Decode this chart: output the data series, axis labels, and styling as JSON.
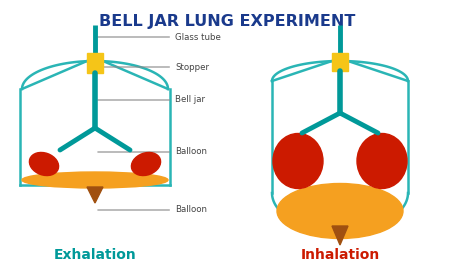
{
  "title": "BELL JAR LUNG EXPERIMENT",
  "title_color": "#1a3a8c",
  "title_fontsize": 11.5,
  "bg_color": "#ffffff",
  "teal": "#2ab5b5",
  "teal_dark": "#009999",
  "yellow": "#f5c518",
  "orange": "#f5a020",
  "red": "#cc1a00",
  "brown": "#a05010",
  "gray_line": "#aaaaaa",
  "label_fontsize": 6.2,
  "exhalation_label": "Exhalation",
  "inhalation_label": "Inhalation",
  "exhalation_color": "#009999",
  "inhalation_color": "#cc1a00"
}
